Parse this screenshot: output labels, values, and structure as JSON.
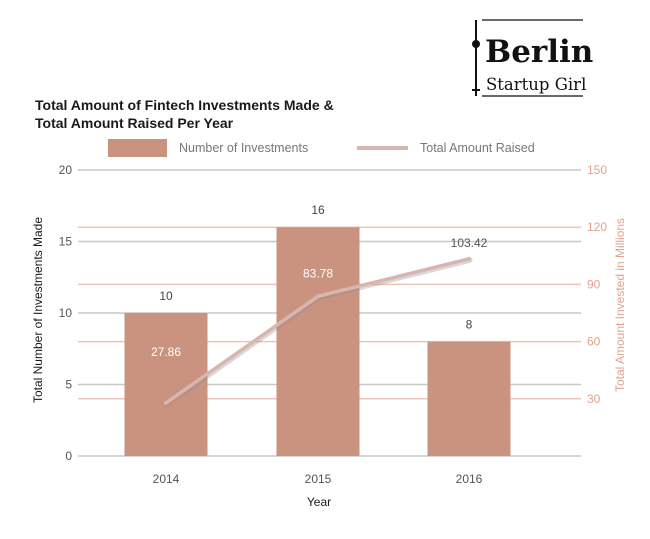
{
  "logo": {
    "line1": "Berlin",
    "line2": "Startup Girl"
  },
  "chart_data": {
    "type": "bar",
    "title": [
      "Total Amount of Fintech Investments Made &",
      "Total Amount Raised Per Year"
    ],
    "xlabel": "Year",
    "ylabel": "Total Number of Investments Made",
    "y2label": "Total Amount Invested in Millions",
    "categories": [
      "2014",
      "2015",
      "2016"
    ],
    "ylim": [
      0,
      20
    ],
    "yticks": [
      0,
      5,
      10,
      15,
      20
    ],
    "y2lim": [
      0,
      150
    ],
    "y2ticks": [
      30,
      60,
      90,
      120,
      150
    ],
    "legend_position": "top",
    "series": [
      {
        "name": "Number of Investments",
        "kind": "bar",
        "axis": "left",
        "values": [
          10,
          16,
          8
        ],
        "labels": [
          "10",
          "16",
          "8"
        ],
        "color": "#c99380"
      },
      {
        "name": "Total Amount Raised",
        "kind": "line",
        "axis": "right",
        "values": [
          27.86,
          83.78,
          103.42
        ],
        "labels": [
          "27.86",
          "83.78",
          "103.42"
        ],
        "color": "#d8b5b0"
      }
    ],
    "colors": {
      "gridline": "#c8c8c8",
      "right_gridline": "#efc4b8",
      "right_axis_text": "#e3a28f"
    }
  }
}
